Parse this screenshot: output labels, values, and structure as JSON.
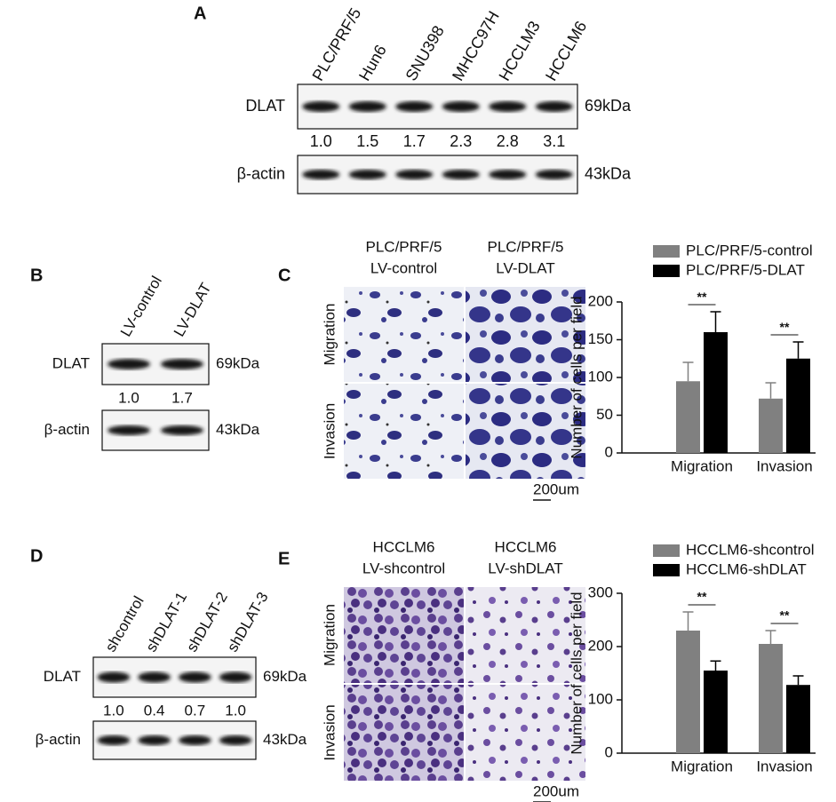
{
  "panel_a": {
    "letter": "A",
    "lanes": [
      "PLC/PRF/5",
      "Hun6",
      "SNU398",
      "MHCC97H",
      "HCCLM3",
      "HCCLM6"
    ],
    "protein": "DLAT",
    "protein_kda": "69kDa",
    "intensities": [
      "1.0",
      "1.5",
      "1.7",
      "2.3",
      "2.8",
      "3.1"
    ],
    "control": "β-actin",
    "control_kda": "43kDa"
  },
  "panel_b": {
    "letter": "B",
    "lanes": [
      "LV-control",
      "LV-DLAT"
    ],
    "protein": "DLAT",
    "protein_kda": "69kDa",
    "intensities": [
      "1.0",
      "1.7"
    ],
    "control": "β-actin",
    "control_kda": "43kDa"
  },
  "panel_c": {
    "letter": "C",
    "columns": [
      [
        "PLC/PRF/5",
        "LV-control"
      ],
      [
        "PLC/PRF/5",
        "LV-DLAT"
      ]
    ],
    "rows": [
      "Migration",
      "Invasion"
    ],
    "scale_bar": "200um"
  },
  "panel_d": {
    "letter": "D",
    "lanes": [
      "shcontrol",
      "shDLAT-1",
      "shDLAT-2",
      "shDLAT-3"
    ],
    "protein": "DLAT",
    "protein_kda": "69kDa",
    "intensities": [
      "1.0",
      "0.4",
      "0.7",
      "1.0"
    ],
    "control": "β-actin",
    "control_kda": "43kDa"
  },
  "panel_e": {
    "letter": "E",
    "columns": [
      [
        "HCCLM6",
        "LV-shcontrol"
      ],
      [
        "HCCLM6",
        "LV-shDLAT"
      ]
    ],
    "rows": [
      "Migration",
      "Invasion"
    ],
    "scale_bar": "200um"
  },
  "chart_data": [
    {
      "type": "bar",
      "ylabel": "Number of cells per field",
      "categories": [
        "Migration",
        "Invasion"
      ],
      "series": [
        {
          "name": "PLC/PRF/5-control",
          "color": "#808080",
          "values": [
            95,
            72
          ],
          "errors": [
            25,
            21
          ]
        },
        {
          "name": "PLC/PRF/5-DLAT",
          "color": "#000000",
          "values": [
            160,
            125
          ],
          "errors": [
            27,
            22
          ]
        }
      ],
      "annotations": [
        "**",
        "**"
      ],
      "ylim": [
        0,
        200
      ],
      "yticks": [
        0,
        50,
        100,
        150,
        200
      ]
    },
    {
      "type": "bar",
      "ylabel": "Number of cells per field",
      "categories": [
        "Migration",
        "Invasion"
      ],
      "series": [
        {
          "name": "HCCLM6-shcontrol",
          "color": "#808080",
          "values": [
            230,
            205
          ],
          "errors": [
            35,
            25
          ]
        },
        {
          "name": "HCCLM6-shDLAT",
          "color": "#000000",
          "values": [
            155,
            128
          ],
          "errors": [
            18,
            17
          ]
        }
      ],
      "annotations": [
        "**",
        "**"
      ],
      "ylim": [
        0,
        300
      ],
      "yticks": [
        0,
        100,
        200,
        300
      ]
    }
  ]
}
